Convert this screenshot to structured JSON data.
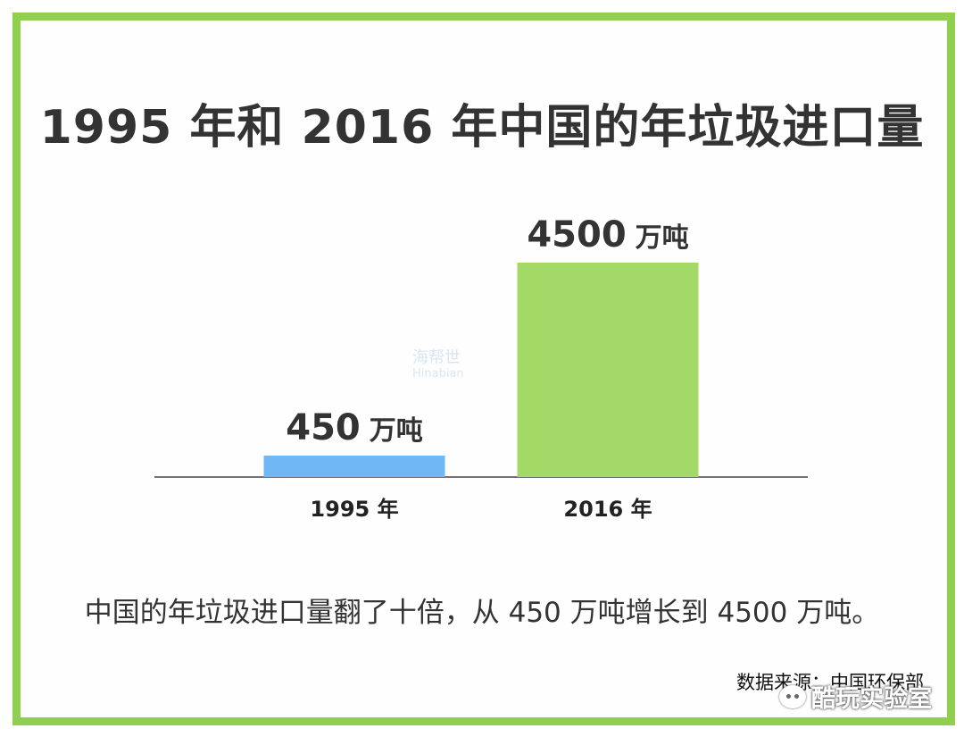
{
  "chart_data": {
    "type": "bar",
    "title": "1995 年和 2016 年中国的年垃圾进口量",
    "categories": [
      "1995 年",
      "2016 年"
    ],
    "values": [
      450,
      4500
    ],
    "value_labels": [
      "450",
      "4500"
    ],
    "unit": "万吨",
    "colors": [
      "#6fb7f5",
      "#a3d966"
    ],
    "ylim": [
      0,
      4500
    ],
    "grid": false,
    "legend": "none"
  },
  "caption": "中国的年垃圾进口量翻了十倍，从 450 万吨增长到 4500 万吨。",
  "source": "数据来源：中国环保部",
  "watermark_mid": {
    "line1": "海帮世",
    "line2": "Hinabian"
  },
  "watermark_corner": "酷玩实验室",
  "frame_color": "#8fd14f"
}
